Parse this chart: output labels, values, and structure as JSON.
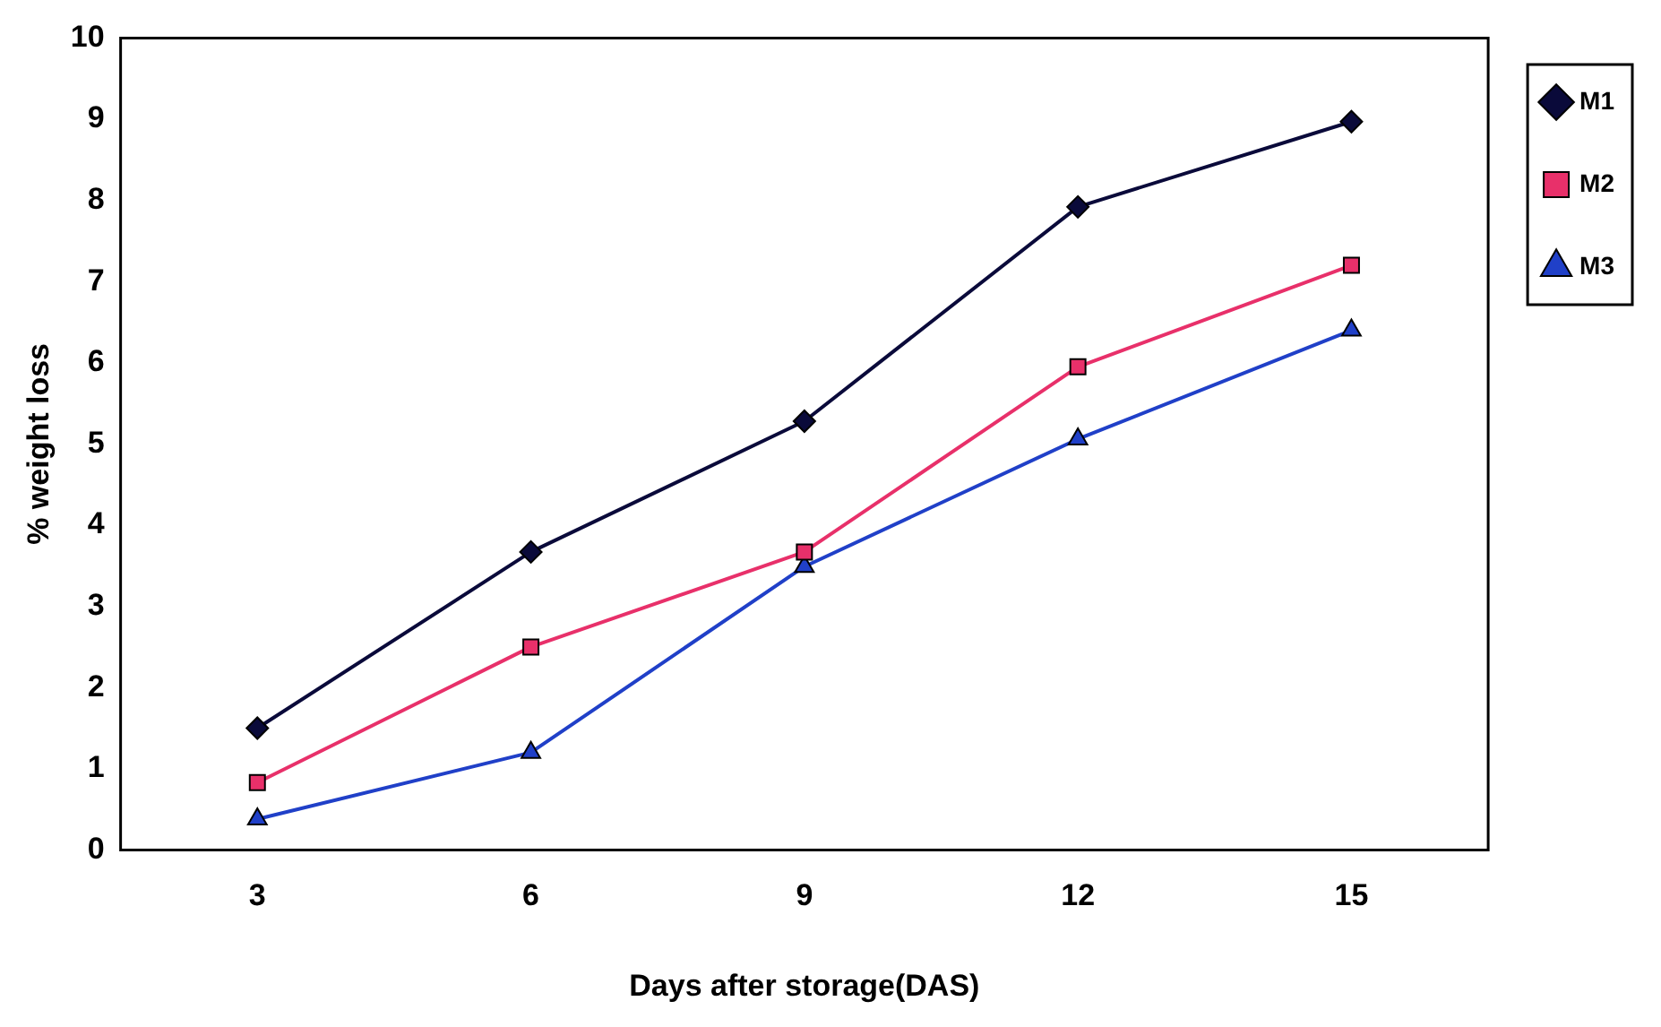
{
  "chart_data": {
    "type": "line",
    "xlabel": "Days after storage(DAS)",
    "ylabel": "% weight loss",
    "categories": [
      "3",
      "6",
      "9",
      "12",
      "15"
    ],
    "series": [
      {
        "name": "M1",
        "color": "#0a0a3a",
        "marker": "diamond",
        "values": [
          1.5,
          3.67,
          5.28,
          7.92,
          8.97
        ]
      },
      {
        "name": "M2",
        "color": "#e8306a",
        "marker": "square",
        "values": [
          0.83,
          2.5,
          3.67,
          5.95,
          7.2
        ]
      },
      {
        "name": "M3",
        "color": "#2040c8",
        "marker": "triangle",
        "values": [
          0.38,
          1.2,
          3.49,
          5.06,
          6.4
        ]
      }
    ],
    "ylim": [
      0,
      10
    ],
    "yticks": [
      0,
      1,
      2,
      3,
      4,
      5,
      6,
      7,
      8,
      9,
      10
    ],
    "grid": false,
    "legend": "right",
    "line_style": "solid"
  }
}
